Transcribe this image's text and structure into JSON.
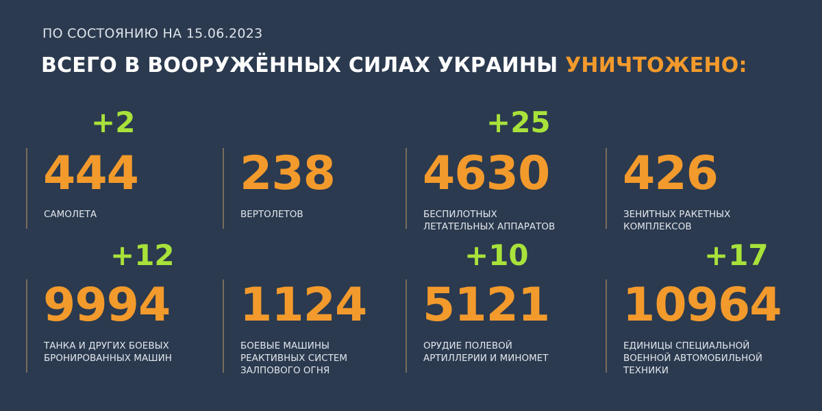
{
  "header": {
    "date_line": "ПО СОСТОЯНИЮ НА 15.06.2023",
    "title": "ВСЕГО В ВООРУЖЁННЫХ СИЛАХ УКРАИНЫ",
    "title_accent": "УНИЧТОЖЕНО:"
  },
  "colors": {
    "background": "#2b3a4f",
    "number": "#f39a2c",
    "delta": "#a8e23a"
  },
  "stats": [
    {
      "value": "444",
      "label": [
        "САМОЛЕТА"
      ],
      "delta": "+2"
    },
    {
      "value": "238",
      "label": [
        "ВЕРТОЛЕТОВ"
      ],
      "delta": ""
    },
    {
      "value": "4630",
      "label": [
        "БЕСПИЛОТНЫХ",
        "ЛЕТАТЕЛЬНЫХ АППАРАТОВ"
      ],
      "delta": "+25"
    },
    {
      "value": "426",
      "label": [
        "ЗЕНИТНЫХ РАКЕТНЫХ",
        "КОМПЛЕКСОВ"
      ],
      "delta": ""
    },
    {
      "value": "9994",
      "label": [
        "ТАНКА И ДРУГИХ БОЕВЫХ",
        "БРОНИРОВАННЫХ МАШИН"
      ],
      "delta": "+12"
    },
    {
      "value": "1124",
      "label": [
        "БОЕВЫЕ МАШИНЫ",
        "РЕАКТИВНЫХ СИСТЕМ",
        "ЗАЛПОВОГО ОГНЯ"
      ],
      "delta": ""
    },
    {
      "value": "5121",
      "label": [
        "ОРУДИЕ ПОЛЕВОЙ",
        "АРТИЛЛЕРИИ И МИНОМЕТ"
      ],
      "delta": "+10"
    },
    {
      "value": "10964",
      "label": [
        "ЕДИНИЦЫ СПЕЦИАЛЬНОЙ",
        "ВОЕННОЙ АВТОМОБИЛЬНОЙ",
        "ТЕХНИКИ"
      ],
      "delta": "+17"
    }
  ]
}
